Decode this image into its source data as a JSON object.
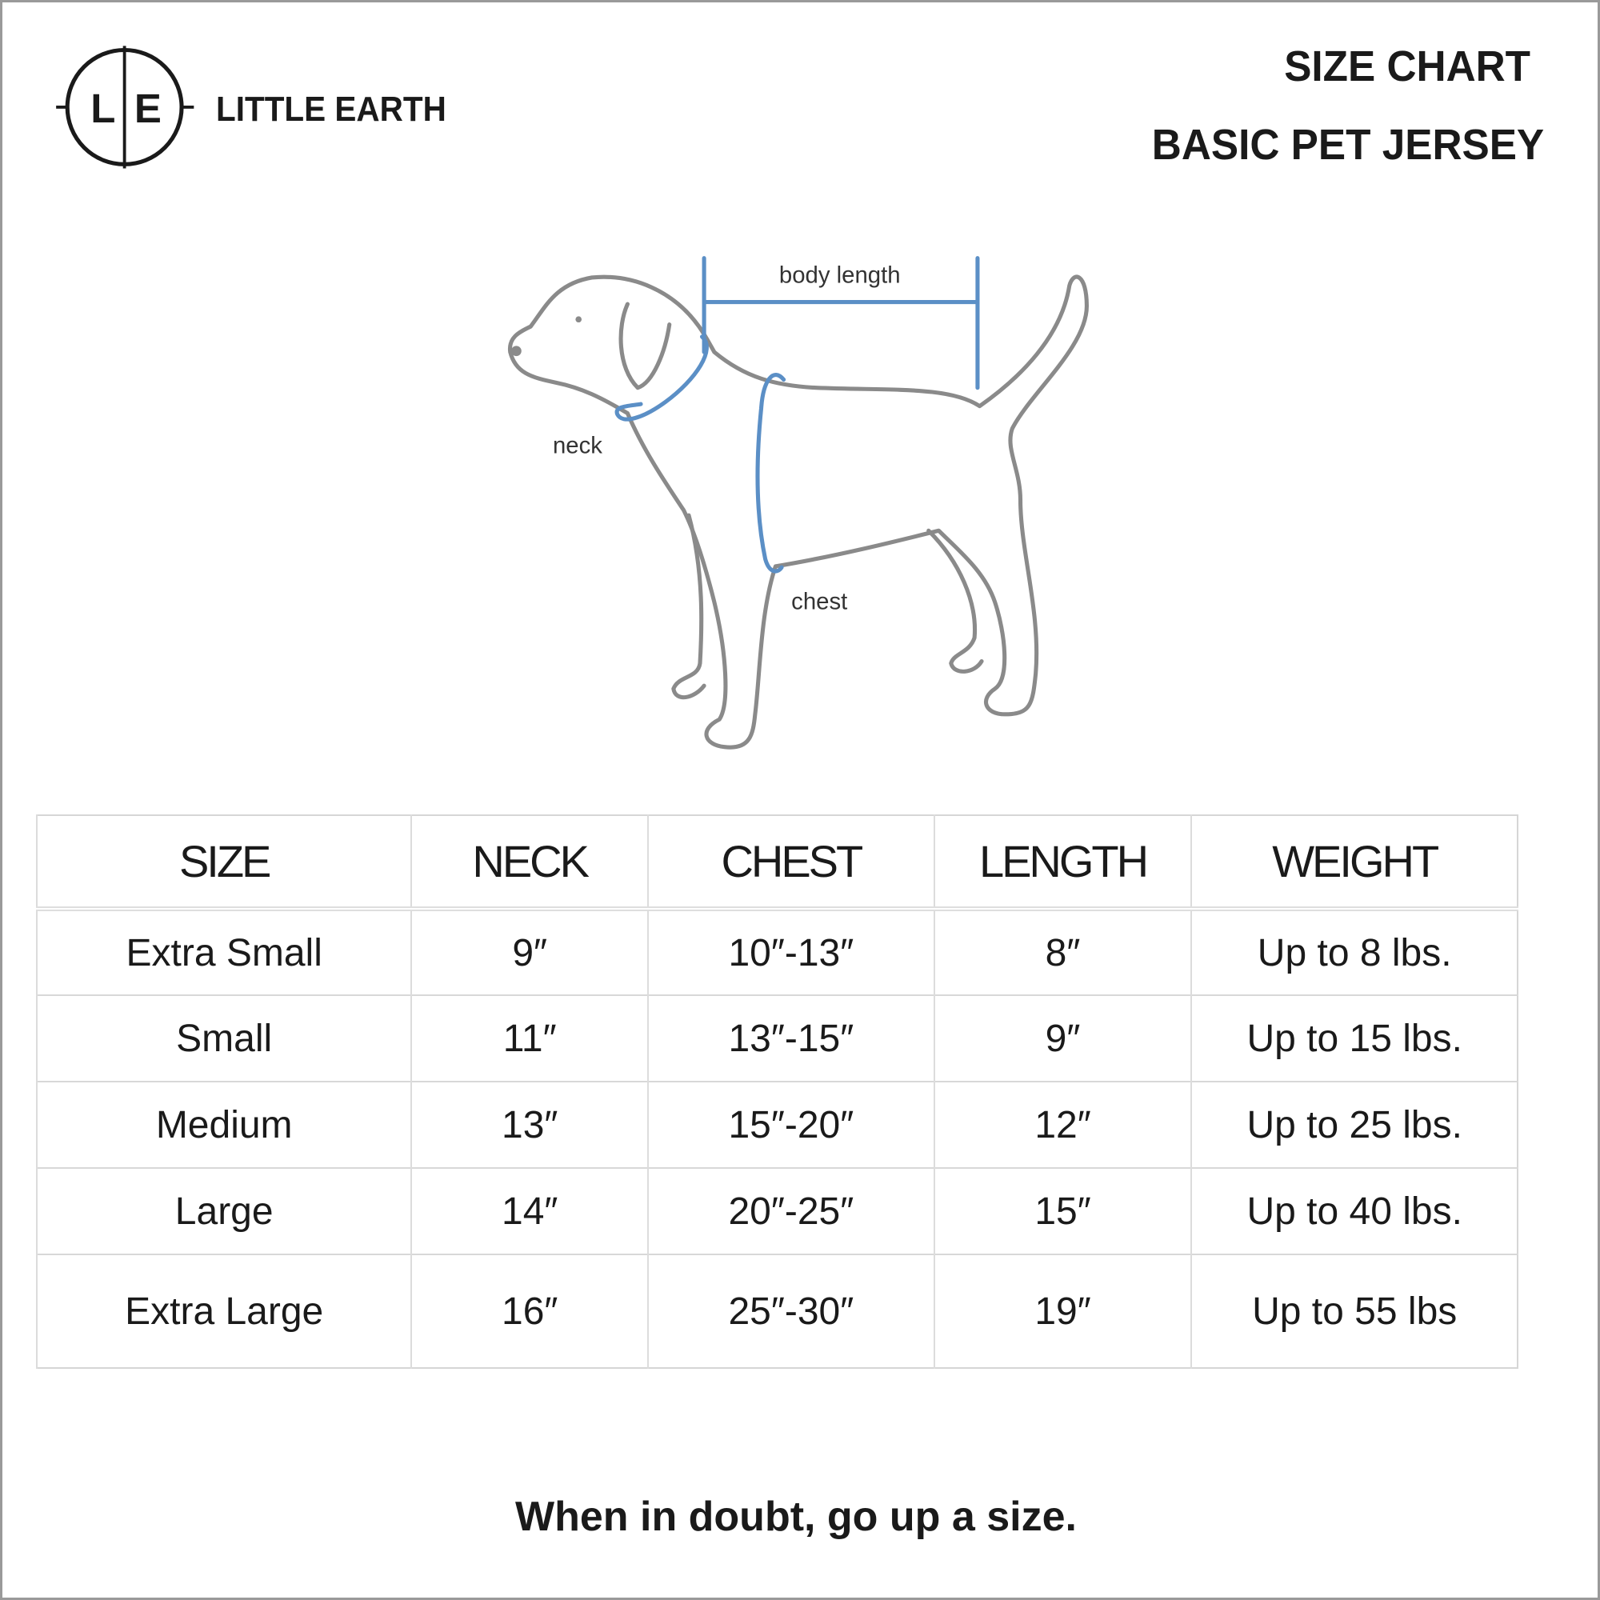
{
  "brand": {
    "logo_letters": [
      "L",
      "E"
    ],
    "name": "LITTLE EARTH"
  },
  "header": {
    "title": "SIZE CHART",
    "subtitle": "BASIC PET JERSEY"
  },
  "diagram": {
    "labels": {
      "body_length": "body length",
      "neck": "neck",
      "chest": "chest"
    },
    "colors": {
      "outline": "#8a8a8a",
      "measure": "#5b8fc6"
    }
  },
  "table": {
    "headers": [
      "SIZE",
      "NECK",
      "CHEST",
      "LENGTH",
      "WEIGHT"
    ],
    "rows": [
      [
        "Extra Small",
        "9″",
        "10″-13″",
        "8″",
        "Up to 8 lbs."
      ],
      [
        "Small",
        "11″",
        "13″-15″",
        "9″",
        "Up to 15 lbs."
      ],
      [
        "Medium",
        "13″",
        "15″-20″",
        "12″",
        "Up to 25 lbs."
      ],
      [
        "Large",
        "14″",
        "20″-25″",
        "15″",
        "Up to 40 lbs."
      ],
      [
        "Extra Large",
        "16″",
        "25″-30″",
        "19″",
        "Up to 55 lbs"
      ]
    ]
  },
  "footer": "When in doubt, go up a size."
}
